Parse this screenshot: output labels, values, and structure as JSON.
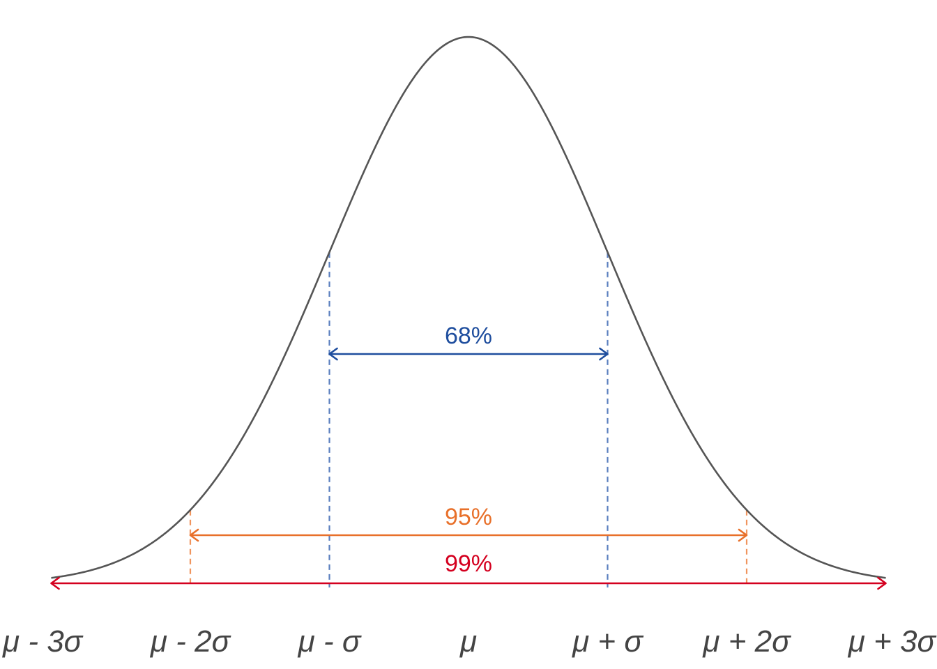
{
  "diagram": {
    "colors": {
      "curve": "#555555",
      "range_68": "#1f4e9e",
      "range_95": "#e8702a",
      "range_99": "#d4001f",
      "guide_1sigma": "#5a7fbf",
      "guide_2sigma": "#f0955e",
      "axis_text": "#444444"
    },
    "ranges": [
      {
        "label": "68%",
        "from_sigma": -1,
        "to_sigma": 1,
        "color_key": "range_68"
      },
      {
        "label": "95%",
        "from_sigma": -2,
        "to_sigma": 2,
        "color_key": "range_95"
      },
      {
        "label": "99%",
        "from_sigma": -3,
        "to_sigma": 3,
        "color_key": "range_99"
      }
    ],
    "axis_labels": [
      {
        "sigma": -3,
        "text": "μ - 3σ"
      },
      {
        "sigma": -2,
        "text": "μ - 2σ"
      },
      {
        "sigma": -1,
        "text": "μ - σ"
      },
      {
        "sigma": 0,
        "text": "μ"
      },
      {
        "sigma": 1,
        "text": "μ + σ"
      },
      {
        "sigma": 2,
        "text": "μ + 2σ"
      },
      {
        "sigma": 3,
        "text": "μ + 3σ"
      }
    ]
  }
}
